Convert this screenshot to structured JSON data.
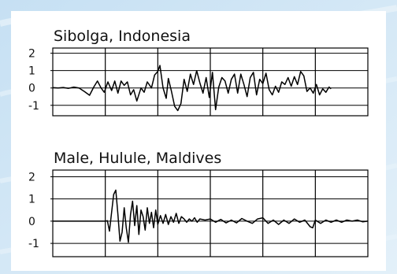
{
  "theme": {
    "background": "#d3e8f6",
    "panel": "#ffffff",
    "line": "#000000",
    "grid": "#000000"
  },
  "chart_data": [
    {
      "type": "line",
      "title": "Sibolga, Indonesia",
      "xlabel": "",
      "ylabel": "",
      "ylim": [
        -1.6,
        2.3
      ],
      "yticks": [
        "2",
        "1",
        "0",
        "-1"
      ],
      "ytick_values": [
        2,
        1,
        0,
        -1
      ],
      "grid": true,
      "x_divisions": 6,
      "xlim": [
        0,
        6
      ],
      "series": [
        {
          "points": [
            [
              0.0,
              0.02
            ],
            [
              0.1,
              0.0
            ],
            [
              0.2,
              0.03
            ],
            [
              0.3,
              -0.02
            ],
            [
              0.4,
              0.05
            ],
            [
              0.5,
              0.0
            ],
            [
              0.6,
              -0.2
            ],
            [
              0.7,
              -0.42
            ],
            [
              0.78,
              0.05
            ],
            [
              0.85,
              0.4
            ],
            [
              0.92,
              0.0
            ],
            [
              0.98,
              -0.25
            ],
            [
              1.05,
              0.35
            ],
            [
              1.12,
              -0.15
            ],
            [
              1.18,
              0.4
            ],
            [
              1.24,
              -0.3
            ],
            [
              1.3,
              0.4
            ],
            [
              1.36,
              0.15
            ],
            [
              1.42,
              0.35
            ],
            [
              1.48,
              -0.4
            ],
            [
              1.54,
              -0.1
            ],
            [
              1.6,
              -0.75
            ],
            [
              1.68,
              0.0
            ],
            [
              1.74,
              -0.25
            ],
            [
              1.8,
              0.35
            ],
            [
              1.88,
              0.0
            ],
            [
              1.94,
              0.75
            ],
            [
              2.0,
              0.95
            ],
            [
              2.04,
              1.3
            ],
            [
              2.1,
              0.0
            ],
            [
              2.16,
              -0.6
            ],
            [
              2.2,
              0.55
            ],
            [
              2.26,
              -0.2
            ],
            [
              2.32,
              -1.05
            ],
            [
              2.38,
              -1.3
            ],
            [
              2.44,
              -0.9
            ],
            [
              2.5,
              0.5
            ],
            [
              2.56,
              -0.2
            ],
            [
              2.62,
              0.8
            ],
            [
              2.68,
              0.2
            ],
            [
              2.74,
              1.0
            ],
            [
              2.8,
              0.3
            ],
            [
              2.86,
              -0.3
            ],
            [
              2.92,
              0.6
            ],
            [
              2.98,
              -0.55
            ],
            [
              3.04,
              0.9
            ],
            [
              3.1,
              -1.25
            ],
            [
              3.16,
              0.05
            ],
            [
              3.22,
              0.6
            ],
            [
              3.28,
              0.4
            ],
            [
              3.34,
              -0.3
            ],
            [
              3.4,
              0.5
            ],
            [
              3.46,
              0.8
            ],
            [
              3.52,
              -0.3
            ],
            [
              3.58,
              0.8
            ],
            [
              3.64,
              0.2
            ],
            [
              3.7,
              -0.5
            ],
            [
              3.76,
              0.6
            ],
            [
              3.82,
              0.9
            ],
            [
              3.88,
              -0.4
            ],
            [
              3.94,
              0.5
            ],
            [
              4.0,
              0.25
            ],
            [
              4.06,
              0.85
            ],
            [
              4.12,
              -0.1
            ],
            [
              4.18,
              -0.4
            ],
            [
              4.24,
              0.1
            ],
            [
              4.3,
              -0.25
            ],
            [
              4.36,
              0.35
            ],
            [
              4.42,
              0.2
            ],
            [
              4.48,
              0.6
            ],
            [
              4.54,
              0.1
            ],
            [
              4.6,
              0.65
            ],
            [
              4.66,
              0.2
            ],
            [
              4.72,
              0.95
            ],
            [
              4.78,
              0.7
            ],
            [
              4.84,
              -0.2
            ],
            [
              4.9,
              0.0
            ],
            [
              4.96,
              -0.3
            ],
            [
              5.02,
              0.2
            ],
            [
              5.08,
              -0.4
            ],
            [
              5.14,
              -0.05
            ],
            [
              5.2,
              -0.25
            ],
            [
              5.26,
              0.05
            ],
            [
              5.3,
              -0.05
            ]
          ]
        }
      ]
    },
    {
      "type": "line",
      "title": "Male, Hulule, Maldives",
      "xlabel": "",
      "ylabel": "",
      "ylim": [
        -1.6,
        2.3
      ],
      "yticks": [
        "2",
        "1",
        "0",
        "-1"
      ],
      "ytick_values": [
        2,
        1,
        0,
        -1
      ],
      "grid": true,
      "x_divisions": 6,
      "xlim": [
        0,
        6
      ],
      "series": [
        {
          "points": [
            [
              0.0,
              0.0
            ],
            [
              0.4,
              0.0
            ],
            [
              0.8,
              0.0
            ],
            [
              1.0,
              0.0
            ],
            [
              1.04,
              0.02
            ],
            [
              1.08,
              -0.45
            ],
            [
              1.12,
              0.4
            ],
            [
              1.16,
              1.2
            ],
            [
              1.2,
              1.4
            ],
            [
              1.24,
              0.3
            ],
            [
              1.28,
              -0.9
            ],
            [
              1.32,
              -0.5
            ],
            [
              1.36,
              0.6
            ],
            [
              1.4,
              -0.3
            ],
            [
              1.44,
              -0.95
            ],
            [
              1.48,
              0.3
            ],
            [
              1.52,
              0.9
            ],
            [
              1.56,
              -0.2
            ],
            [
              1.6,
              0.7
            ],
            [
              1.64,
              -0.6
            ],
            [
              1.68,
              0.5
            ],
            [
              1.72,
              0.2
            ],
            [
              1.76,
              -0.4
            ],
            [
              1.8,
              0.6
            ],
            [
              1.84,
              -0.1
            ],
            [
              1.88,
              0.4
            ],
            [
              1.92,
              -0.3
            ],
            [
              1.96,
              0.5
            ],
            [
              2.0,
              -0.15
            ],
            [
              2.05,
              0.25
            ],
            [
              2.1,
              -0.1
            ],
            [
              2.15,
              0.3
            ],
            [
              2.2,
              -0.15
            ],
            [
              2.25,
              0.2
            ],
            [
              2.3,
              -0.05
            ],
            [
              2.35,
              0.35
            ],
            [
              2.4,
              -0.1
            ],
            [
              2.45,
              0.2
            ],
            [
              2.5,
              0.1
            ],
            [
              2.55,
              -0.05
            ],
            [
              2.6,
              0.1
            ],
            [
              2.65,
              0.0
            ],
            [
              2.7,
              0.15
            ],
            [
              2.75,
              -0.05
            ],
            [
              2.8,
              0.1
            ],
            [
              2.9,
              0.05
            ],
            [
              3.0,
              0.1
            ],
            [
              3.1,
              -0.05
            ],
            [
              3.2,
              0.08
            ],
            [
              3.3,
              -0.08
            ],
            [
              3.4,
              0.05
            ],
            [
              3.5,
              -0.08
            ],
            [
              3.6,
              0.12
            ],
            [
              3.7,
              0.0
            ],
            [
              3.8,
              -0.1
            ],
            [
              3.9,
              0.1
            ],
            [
              4.0,
              0.15
            ],
            [
              4.1,
              -0.1
            ],
            [
              4.2,
              0.05
            ],
            [
              4.3,
              -0.15
            ],
            [
              4.4,
              0.05
            ],
            [
              4.5,
              -0.1
            ],
            [
              4.6,
              0.1
            ],
            [
              4.7,
              -0.05
            ],
            [
              4.8,
              0.05
            ],
            [
              4.9,
              -0.25
            ],
            [
              4.95,
              -0.3
            ],
            [
              5.0,
              0.05
            ],
            [
              5.1,
              -0.1
            ],
            [
              5.2,
              0.05
            ],
            [
              5.3,
              -0.05
            ],
            [
              5.4,
              0.05
            ],
            [
              5.5,
              -0.05
            ],
            [
              5.6,
              0.05
            ],
            [
              5.7,
              0.0
            ],
            [
              5.8,
              0.05
            ],
            [
              5.9,
              -0.03
            ],
            [
              6.0,
              0.0
            ]
          ]
        }
      ]
    }
  ]
}
